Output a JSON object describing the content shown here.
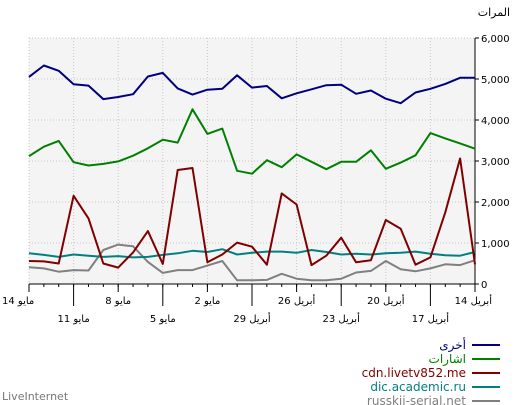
{
  "colors": {
    "background": "#ffffff",
    "plot_bg": "#f4f4f4",
    "grid": "#c8c8c8",
    "axis": "#000000",
    "brand": "#777777"
  },
  "brand": "LiveInternet",
  "chart_data": {
    "type": "line",
    "ylabel": "المرات",
    "ylim": [
      0,
      6000
    ],
    "y_ticks": [
      "0",
      "1,000",
      "2,000",
      "3,000",
      "4,000",
      "5,000",
      "6,000"
    ],
    "x_tick_labels_upper": [
      "14 مايو",
      "8 مايو",
      "2 مايو",
      "26 أبريل",
      "20 أبريل",
      "14 أبريل"
    ],
    "x_tick_labels_lower": [
      "11 مايو",
      "5 مايو",
      "29 أبريل",
      "23 أبريل",
      "17 أبريل"
    ],
    "x": [
      "14 مايو",
      "13 مايو",
      "12 مايو",
      "11 مايو",
      "10 مايو",
      "9 مايو",
      "8 مايو",
      "7 مايو",
      "6 مايو",
      "5 مايو",
      "4 مايو",
      "3 مايو",
      "2 مايو",
      "1 مايو",
      "30 أبريل",
      "29 أبريل",
      "28 أبريل",
      "27 أبريل",
      "26 أبريل",
      "25 أبريل",
      "24 أبريل",
      "23 أبريل",
      "22 أبريل",
      "21 أبريل",
      "20 أبريل",
      "19 أبريل",
      "18 أبريل",
      "17 أبريل",
      "16 أبريل",
      "15 أبريل",
      "14 أبريل"
    ],
    "series": [
      {
        "name": "أخرى",
        "color": "#000080",
        "values": [
          5050,
          5330,
          5200,
          4870,
          4840,
          4510,
          4560,
          4630,
          5060,
          5150,
          4770,
          4620,
          4740,
          4760,
          5090,
          4790,
          4830,
          4530,
          4650,
          4750,
          4850,
          4860,
          4640,
          4720,
          4520,
          4410,
          4670,
          4760,
          4880,
          5030,
          5030
        ]
      },
      {
        "name": "اشارات",
        "color": "#008000",
        "values": [
          3120,
          3350,
          3490,
          2970,
          2890,
          2930,
          2990,
          3130,
          3310,
          3520,
          3450,
          4260,
          3660,
          3790,
          2760,
          2690,
          3020,
          2850,
          3160,
          2980,
          2800,
          2980,
          2980,
          3260,
          2810,
          2960,
          3140,
          3680,
          3550,
          3430,
          3300
        ]
      },
      {
        "name": "cdn.livetv852.me",
        "color": "#800000",
        "values": [
          560,
          550,
          500,
          2150,
          1600,
          500,
          400,
          770,
          1290,
          490,
          2780,
          2830,
          530,
          720,
          1010,
          910,
          470,
          2210,
          1940,
          460,
          690,
          1130,
          530,
          580,
          1560,
          1350,
          470,
          650,
          1750,
          3060,
          480
        ]
      },
      {
        "name": "dic.academic.ru",
        "color": "#008080",
        "values": [
          750,
          710,
          660,
          720,
          690,
          660,
          680,
          650,
          660,
          710,
          750,
          810,
          780,
          850,
          720,
          760,
          790,
          790,
          760,
          830,
          780,
          720,
          740,
          720,
          750,
          760,
          790,
          740,
          700,
          690,
          780
        ]
      },
      {
        "name": "russkii-serial.net",
        "color": "#808080",
        "values": [
          410,
          380,
          300,
          340,
          330,
          830,
          960,
          920,
          540,
          270,
          340,
          340,
          450,
          560,
          90,
          90,
          100,
          250,
          130,
          90,
          90,
          130,
          280,
          320,
          560,
          360,
          310,
          380,
          480,
          460,
          580
        ]
      }
    ]
  }
}
